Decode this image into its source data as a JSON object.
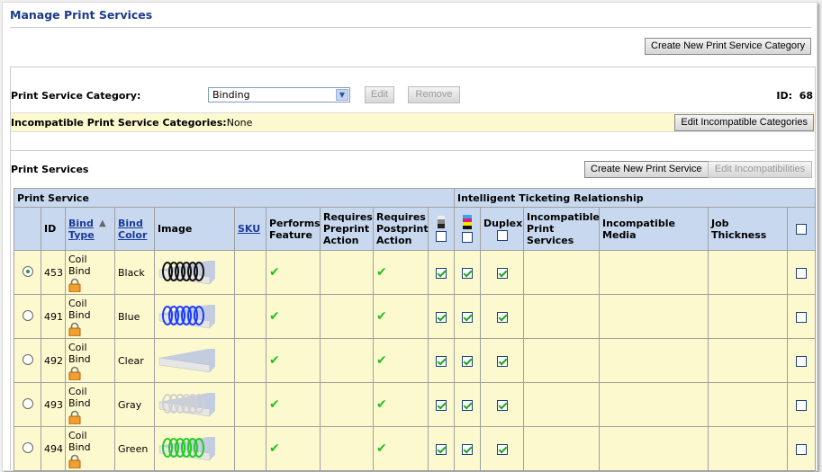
{
  "page": {
    "title": "Manage Print Services",
    "create_category_label": "Create New Print Service Category"
  },
  "category": {
    "label": "Print Service Category:",
    "selected": "Binding",
    "edit_label": "Edit",
    "remove_label": "Remove",
    "id_label": "ID:",
    "id_value": "68"
  },
  "incompatible": {
    "label": "Incompatible Print Service Categories:",
    "value": "None",
    "edit_label": "Edit Incompatible Categories"
  },
  "services": {
    "label": "Print Services",
    "create_label": "Create New Print Service",
    "edit_incompat_label": "Edit Incompatibilities"
  },
  "table": {
    "group_print_service": "Print Service",
    "group_intelligent": "Intelligent Ticketing Relationship",
    "headers": {
      "id": "ID",
      "bind_type": "Bind Type",
      "bind_color": "Bind Color",
      "image": "Image",
      "sku": "SKU",
      "performs": "Performs Feature",
      "preprint": "Requires Preprint Action",
      "postprint": "Requires Postprint Action",
      "duplex": "Duplex",
      "incompat_ps": "Incompatible Print Services",
      "incompat_media": "Incompatible Media",
      "job_thickness": "Job Thickness"
    },
    "sort": "Bind Type ascending",
    "rows": [
      {
        "id": "453",
        "bind_type": "Coil Bind",
        "bind_color": "Black",
        "coil_color": "#111111",
        "selected": true
      },
      {
        "id": "491",
        "bind_type": "Coil Bind",
        "bind_color": "Blue",
        "coil_color": "#1a3cff",
        "selected": false
      },
      {
        "id": "492",
        "bind_type": "Coil Bind",
        "bind_color": "Clear",
        "coil_color": "none",
        "selected": false
      },
      {
        "id": "493",
        "bind_type": "Coil Bind",
        "bind_color": "Gray",
        "coil_color": "#d0d0d0",
        "selected": false
      },
      {
        "id": "494",
        "bind_type": "Coil Bind",
        "bind_color": "Green",
        "coil_color": "#22cc22",
        "selected": false
      }
    ]
  }
}
